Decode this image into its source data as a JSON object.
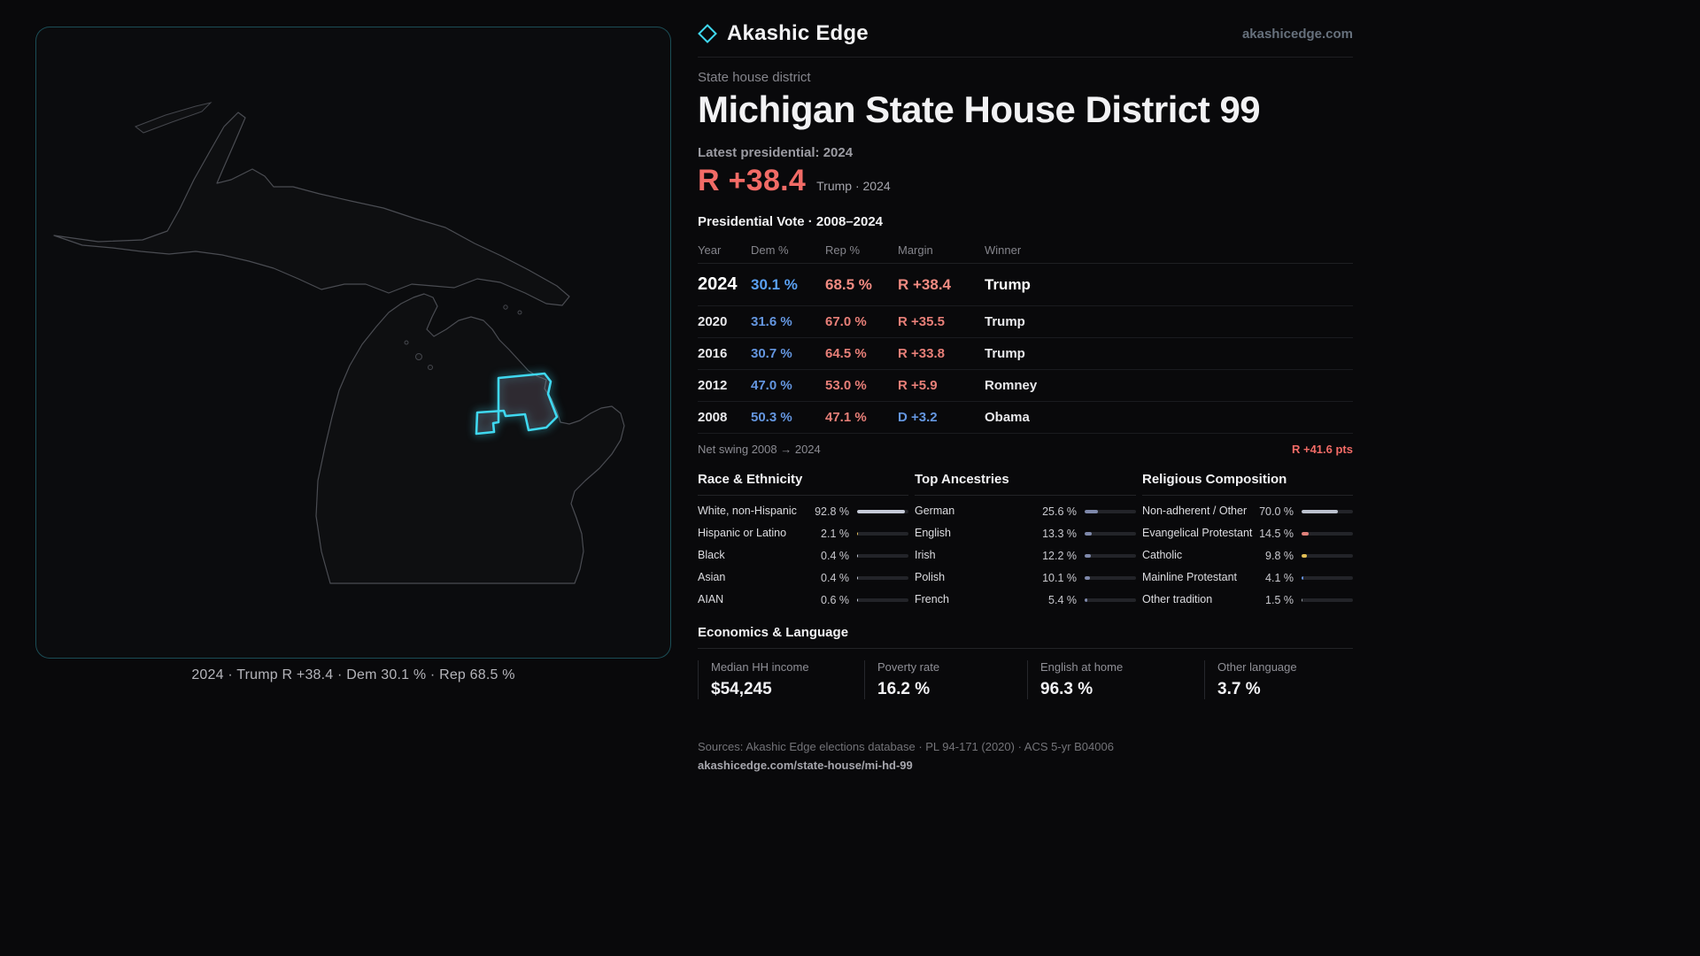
{
  "colors": {
    "accent": "#3fd8f0",
    "dem": "#6496e0",
    "dem-bright": "#5aa0f2",
    "rep": "#e87f78",
    "rep-bright": "#f28b82",
    "headline": "#f26b66",
    "line": "#1e1f23",
    "track": "#232429"
  },
  "brand": {
    "name": "Akashic Edge",
    "site": "akashicedge.com",
    "logo_icon": "diamond-icon"
  },
  "header": {
    "kicker": "State house district",
    "title": "Michigan State House District 99",
    "latest_label": "Latest presidential: 2024",
    "headline_margin": "R +38.4",
    "headline_sub": "Trump · 2024"
  },
  "map": {
    "caption": "2024 · Trump R +38.4 · Dem 30.1 % · Rep 68.5 %",
    "highlight_name": "district-99-shape"
  },
  "table": {
    "title": "Presidential Vote · 2008–2024",
    "headers": {
      "year": "Year",
      "dem": "Dem %",
      "rep": "Rep %",
      "margin": "Margin",
      "winner": "Winner"
    },
    "rows": [
      {
        "year": "2024",
        "dem": "30.1 %",
        "rep": "68.5 %",
        "margin": "R +38.4",
        "winner": "Trump"
      },
      {
        "year": "2020",
        "dem": "31.6 %",
        "rep": "67.0 %",
        "margin": "R +35.5",
        "winner": "Trump"
      },
      {
        "year": "2016",
        "dem": "30.7 %",
        "rep": "64.5 %",
        "margin": "R +33.8",
        "winner": "Trump"
      },
      {
        "year": "2012",
        "dem": "47.0 %",
        "rep": "53.0 %",
        "margin": "R +5.9",
        "winner": "Romney"
      },
      {
        "year": "2008",
        "dem": "50.3 %",
        "rep": "47.1 %",
        "margin": "D +3.2",
        "winner": "Obama"
      }
    ],
    "net_swing_label": "Net swing 2008 → 2024",
    "net_swing_value": "R +41.6 pts"
  },
  "demographics": {
    "race": {
      "title": "Race & Ethnicity",
      "items": [
        {
          "label": "White, non-Hispanic",
          "value": "92.8 %",
          "pct": 92.8,
          "color": "#c6cbd8"
        },
        {
          "label": "Hispanic or Latino",
          "value": "2.1 %",
          "pct": 2.1,
          "color": "#e5c15c"
        },
        {
          "label": "Black",
          "value": "0.4 %",
          "pct": 0.4,
          "color": "#c6cbd8"
        },
        {
          "label": "Asian",
          "value": "0.4 %",
          "pct": 0.4,
          "color": "#c6cbd8"
        },
        {
          "label": "AIAN",
          "value": "0.6 %",
          "pct": 0.6,
          "color": "#c6cbd8"
        }
      ]
    },
    "ancestries": {
      "title": "Top Ancestries",
      "items": [
        {
          "label": "German",
          "value": "25.6 %",
          "pct": 25.6,
          "color": "#7e88aa"
        },
        {
          "label": "English",
          "value": "13.3 %",
          "pct": 13.3,
          "color": "#7e88aa"
        },
        {
          "label": "Irish",
          "value": "12.2 %",
          "pct": 12.2,
          "color": "#7e88aa"
        },
        {
          "label": "Polish",
          "value": "10.1 %",
          "pct": 10.1,
          "color": "#7e88aa"
        },
        {
          "label": "French",
          "value": "5.4 %",
          "pct": 5.4,
          "color": "#7e88aa"
        }
      ]
    },
    "religion": {
      "title": "Religious Composition",
      "items": [
        {
          "label": "Non-adherent / Other",
          "value": "70.0 %",
          "pct": 70.0,
          "color": "#bcc2cf"
        },
        {
          "label": "Evangelical Protestant",
          "value": "14.5 %",
          "pct": 14.5,
          "color": "#e0807a"
        },
        {
          "label": "Catholic",
          "value": "9.8 %",
          "pct": 9.8,
          "color": "#e2bf55"
        },
        {
          "label": "Mainline Protestant",
          "value": "4.1 %",
          "pct": 4.1,
          "color": "#6490dd"
        },
        {
          "label": "Other tradition",
          "value": "1.5 %",
          "pct": 1.5,
          "color": "#9aa0aa"
        }
      ]
    }
  },
  "economics": {
    "title": "Economics & Language",
    "stats": [
      {
        "label": "Median HH income",
        "value": "$54,245"
      },
      {
        "label": "Poverty rate",
        "value": "16.2 %"
      },
      {
        "label": "English at home",
        "value": "96.3 %"
      },
      {
        "label": "Other language",
        "value": "3.7 %"
      }
    ]
  },
  "footer": {
    "sources": "Sources: Akashic Edge elections database · PL 94-171 (2020) · ACS 5-yr B04006",
    "permalink": "akashicedge.com/state-house/mi-hd-99"
  }
}
